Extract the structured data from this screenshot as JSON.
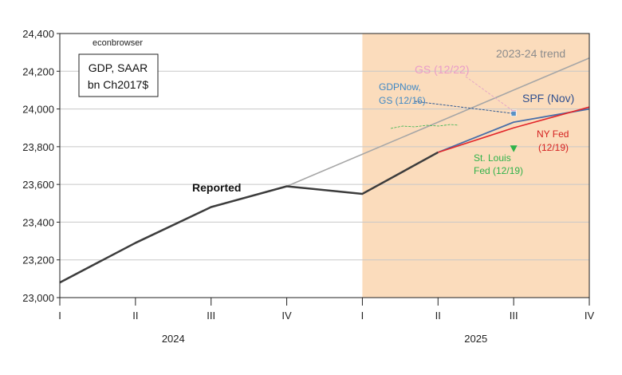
{
  "chart_data": {
    "type": "line",
    "source_label": "econbrowser",
    "title_box": {
      "line1": "GDP, SAAR",
      "line2": "bn Ch2017$"
    },
    "x": [
      "2024Q1",
      "2024Q2",
      "2024Q3",
      "2024Q4",
      "2025Q1",
      "2025Q2",
      "2025Q3",
      "2025Q4"
    ],
    "x_tick_labels": [
      "I",
      "II",
      "III",
      "IV",
      "I",
      "II",
      "III",
      "IV"
    ],
    "year_labels": [
      {
        "label": "2024",
        "span": [
          "2024Q1",
          "2024Q4"
        ]
      },
      {
        "label": "2025",
        "span": [
          "2025Q1",
          "2025Q4"
        ]
      }
    ],
    "ylim": [
      23000,
      24400
    ],
    "y_ticks": [
      23000,
      23200,
      23400,
      23600,
      23800,
      24000,
      24200,
      24400
    ],
    "y_tick_labels": [
      "23,000",
      "23,200",
      "23,400",
      "23,600",
      "23,800",
      "24,000",
      "24,200",
      "24,400"
    ],
    "grid": "horizontal",
    "shaded_region": {
      "from": "2025Q1",
      "to": "2025Q4",
      "color": "#fbdcbc"
    },
    "series": [
      {
        "name": "Reported",
        "color": "#3c3c3c",
        "x": [
          "2024Q1",
          "2024Q2",
          "2024Q3",
          "2024Q4",
          "2025Q1",
          "2025Q2"
        ],
        "values": [
          23080,
          23290,
          23480,
          23590,
          23550,
          23770
        ]
      },
      {
        "name": "2023-24 trend",
        "color": "#a6a6a6",
        "x": [
          "2024Q4",
          "2025Q4"
        ],
        "values": [
          23590,
          24270
        ]
      },
      {
        "name": "SPF (Nov)",
        "color": "#4a6fa8",
        "x": [
          "2025Q2",
          "2025Q3",
          "2025Q4"
        ],
        "values": [
          23770,
          23930,
          24000
        ]
      },
      {
        "name": "NY Fed (12/19)",
        "color": "#e2262a",
        "x": [
          "2025Q2",
          "2025Q3",
          "2025Q4"
        ],
        "values": [
          23770,
          23900,
          24010
        ]
      }
    ],
    "point_estimates": [
      {
        "name": "GS (12/22)",
        "x": "2025Q3",
        "value": 23980,
        "color": "#e3a1c8",
        "marker": "square"
      },
      {
        "name": "GDPNow, GS (12/16)",
        "x": "2025Q3",
        "value": 23975,
        "color": "#4a8fc6",
        "marker": "square"
      },
      {
        "name": "St. Louis Fed (12/19)",
        "x": "2025Q3",
        "value": 23790,
        "color": "#2fb24a",
        "marker": "triangle-down"
      }
    ],
    "annotations": {
      "reported": "Reported",
      "trend": "2023-24 trend",
      "gs": "GS (12/22)",
      "gdpnow_line1": "GDPNow,",
      "gdpnow_line2": "GS (12/16)",
      "spf": "SPF (Nov)",
      "nyfed_line1": "NY Fed",
      "nyfed_line2": "(12/19)",
      "stl_line1": "St. Louis",
      "stl_line2": "Fed (12/19)"
    }
  }
}
